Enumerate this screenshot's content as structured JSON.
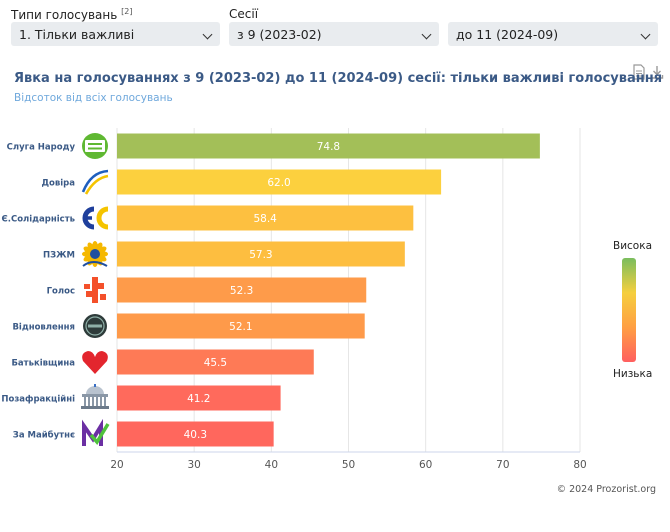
{
  "filters": {
    "vote_type": {
      "label": "Типи голосувань",
      "note": "[2]",
      "value": "1. Тільки важливі"
    },
    "sessions": {
      "label": "Сесії",
      "from_value": "з 9 (2023-02)",
      "to_value": "до 11 (2024-09)"
    }
  },
  "toolbar": {
    "document_icon": "document-icon",
    "download_icon": "download-icon"
  },
  "legend": {
    "high": "Висока",
    "low": "Низька"
  },
  "footer": {
    "copyright": "© 2024 Prozorist.org"
  },
  "colors": {
    "title": "#3b5a86",
    "subtitle": "#6fa8dc",
    "grid": "#e6e6e6"
  },
  "chart_data": {
    "type": "bar",
    "orientation": "horizontal",
    "title": "Явка на голосуваннях з 9 (2023-02) до 11 (2024-09) сесії: тільки важливі голосування",
    "subtitle": "Відсоток від всіх голосувань",
    "categories": [
      "Слуга Народу",
      "Довіра",
      "Є.Солідарність",
      "ПЗЖМ",
      "Голос",
      "Відновлення",
      "Батьківщина",
      "Позафракційні",
      "За Майбутнє"
    ],
    "values": [
      74.8,
      62.0,
      58.4,
      57.3,
      52.3,
      52.1,
      45.5,
      41.2,
      40.3
    ],
    "value_labels": [
      "74.8",
      "62.0",
      "58.4",
      "57.3",
      "52.3",
      "52.1",
      "45.5",
      "41.2",
      "40.3"
    ],
    "bar_colors": [
      "#a3bf58",
      "#fcd03e",
      "#fdc040",
      "#fdbe40",
      "#fe9b4a",
      "#fe9a4a",
      "#fe7a56",
      "#ff6a5c",
      "#ff675d"
    ],
    "logos": [
      "servant-of-people-logo",
      "dovira-logo",
      "european-solidarity-logo",
      "opzzh-logo",
      "golos-logo",
      "vidnovlennia-logo",
      "batkivshchyna-logo",
      "parliament-building-icon",
      "za-maibutnie-logo"
    ],
    "xlim": [
      20,
      80
    ],
    "xticks": [
      "20",
      "30",
      "40",
      "50",
      "60",
      "70",
      "80"
    ],
    "xlabel": "",
    "ylabel": "",
    "grid": true
  }
}
